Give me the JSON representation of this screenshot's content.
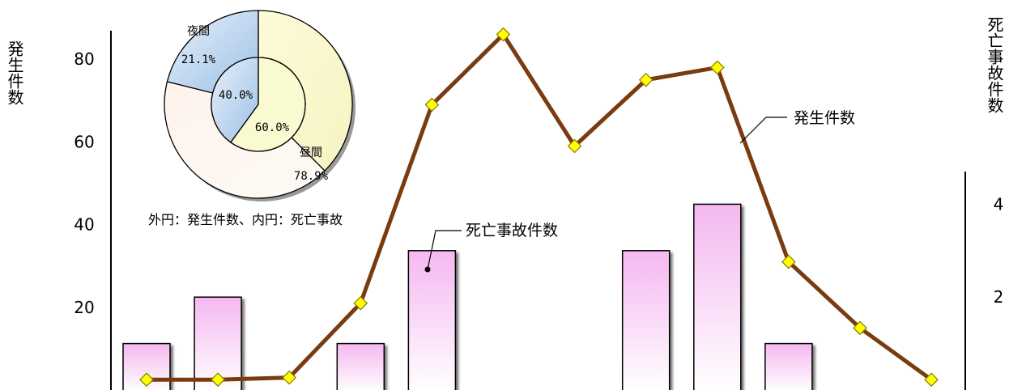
{
  "chart_data": {
    "type": "bar+line",
    "left_axis": {
      "label": "発生件数",
      "ticks": [
        20,
        40,
        60,
        80
      ],
      "ylim": [
        0,
        88
      ]
    },
    "right_axis": {
      "label": "死亡事故件数",
      "ticks": [
        2,
        4
      ],
      "ylim": [
        0,
        4.85
      ]
    },
    "series": [
      {
        "name": "発生件数",
        "type": "line",
        "axis": "left",
        "color": "#7a3b10",
        "marker_color": "#ffff00",
        "values": [
          2.5,
          2.5,
          3,
          21,
          69,
          86,
          59,
          75,
          78,
          31,
          15,
          2.5
        ]
      },
      {
        "name": "死亡事故件数",
        "type": "bar",
        "axis": "right",
        "color_top": "#f5b8f0",
        "values": [
          1,
          2,
          0,
          1,
          3,
          0,
          0,
          3,
          4,
          1,
          0,
          0
        ]
      }
    ],
    "grid": false
  },
  "pie": {
    "caption": "外円：発生件数、内円：死亡事故",
    "outer": [
      {
        "label": "昼間",
        "value": "78.9%",
        "fraction": 0.789,
        "color": "#fafad0"
      },
      {
        "label": "夜間",
        "value": "21.1%",
        "fraction": 0.211,
        "color": "#b8d4ee"
      }
    ],
    "inner": [
      {
        "label": "",
        "value": "60.0%",
        "fraction": 0.6,
        "color": "#fafad0"
      },
      {
        "label": "",
        "value": "40.0%",
        "fraction": 0.4,
        "color": "#b8d4ee"
      }
    ],
    "outer_dim_color": "#fdf0e6"
  }
}
